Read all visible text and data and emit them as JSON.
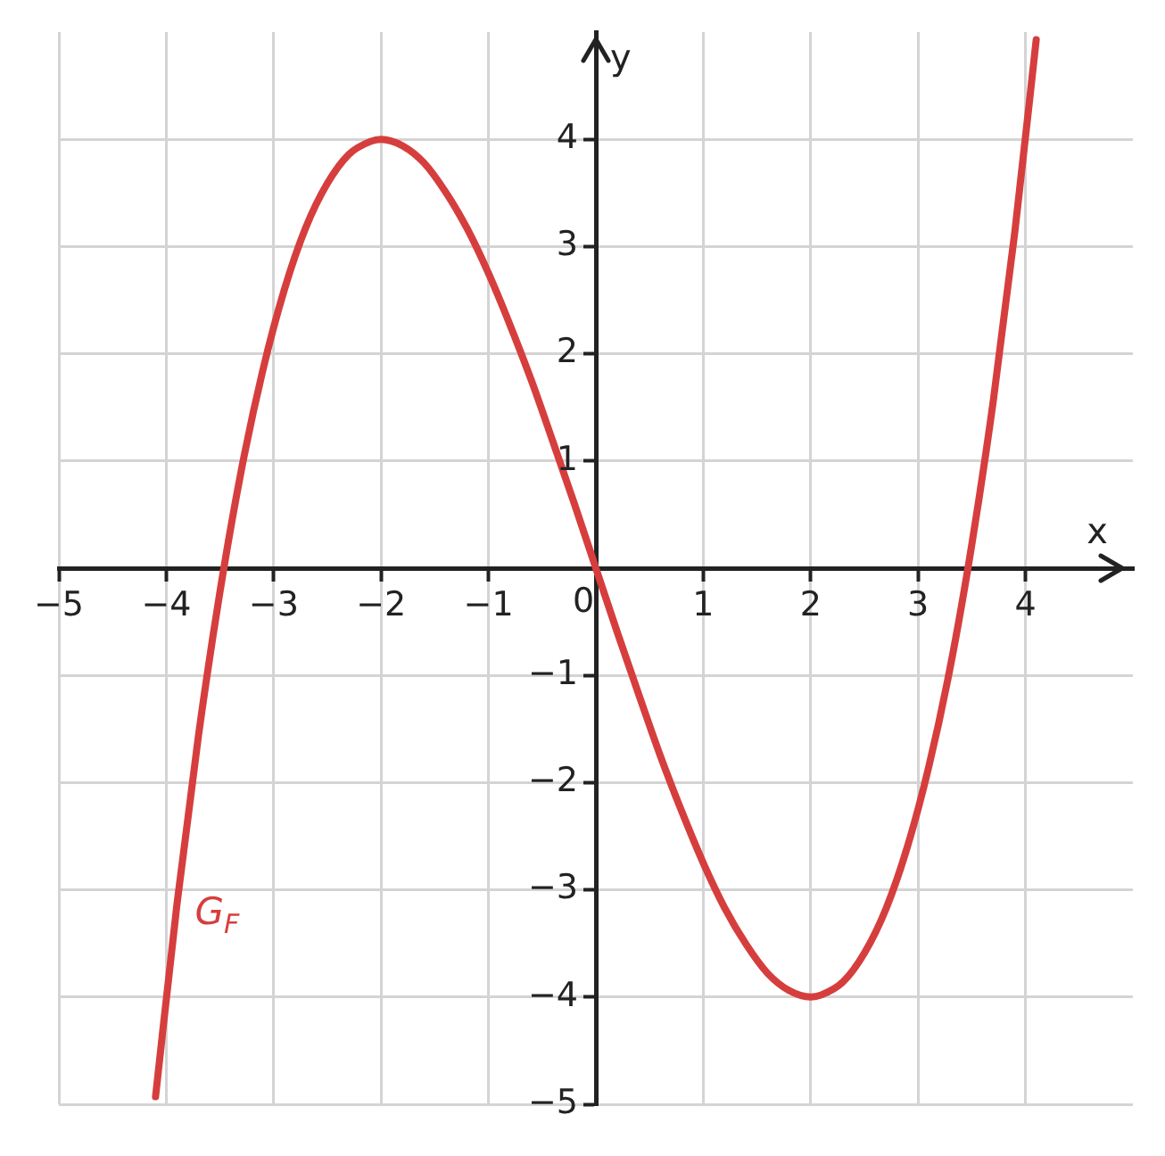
{
  "chart_data": {
    "type": "line",
    "xlabel": "x",
    "ylabel": "y",
    "xlim": [
      -5,
      5
    ],
    "ylim": [
      -5,
      5
    ],
    "xticks": [
      {
        "value": -5,
        "label": "−5"
      },
      {
        "value": -4,
        "label": "−4"
      },
      {
        "value": -3,
        "label": "−3"
      },
      {
        "value": -2,
        "label": "−2"
      },
      {
        "value": -1,
        "label": "−1"
      },
      0,
      1,
      2,
      3,
      4
    ],
    "yticks": [
      {
        "value": -5,
        "label": "−5"
      },
      {
        "value": -4,
        "label": "−4"
      },
      {
        "value": -3,
        "label": "−3"
      },
      {
        "value": -2,
        "label": "−2"
      },
      {
        "value": -1,
        "label": "−1"
      },
      1,
      2,
      3,
      4
    ],
    "grid": true,
    "legend": false,
    "marker": "none",
    "line_style": "solid",
    "series": [
      {
        "name": "G$_{F}$",
        "color": "#d63e3e",
        "x": [
          -4.1,
          -3.9,
          -3.7,
          -3.5,
          -3.3,
          -3.1,
          -2.9,
          -2.7,
          -2.5,
          -2.3,
          -2.1,
          -2,
          -1.8,
          -1.6,
          -1.4,
          -1.2,
          -1,
          -0.8,
          -0.6,
          -0.4,
          -0.2,
          0,
          0.2,
          0.4,
          0.6,
          0.8,
          1,
          1.2,
          1.4,
          1.6,
          1.8,
          2,
          2.1,
          2.3,
          2.5,
          2.7,
          2.9,
          3.1,
          3.3,
          3.5,
          3.7,
          3.9,
          4.1
        ],
        "values": [
          -4.93,
          -3.13,
          -1.56,
          -0.22,
          0.92,
          1.85,
          2.6,
          3.18,
          3.59,
          3.86,
          3.98,
          4,
          3.94,
          3.78,
          3.51,
          3.17,
          2.75,
          2.27,
          1.75,
          1.18,
          0.6,
          0,
          -0.6,
          -1.18,
          -1.75,
          -2.27,
          -2.75,
          -3.17,
          -3.51,
          -3.78,
          -3.94,
          -4,
          -3.98,
          -3.86,
          -3.59,
          -3.18,
          -2.6,
          -1.85,
          -0.92,
          0.22,
          1.56,
          3.13,
          4.93
        ]
      }
    ]
  }
}
